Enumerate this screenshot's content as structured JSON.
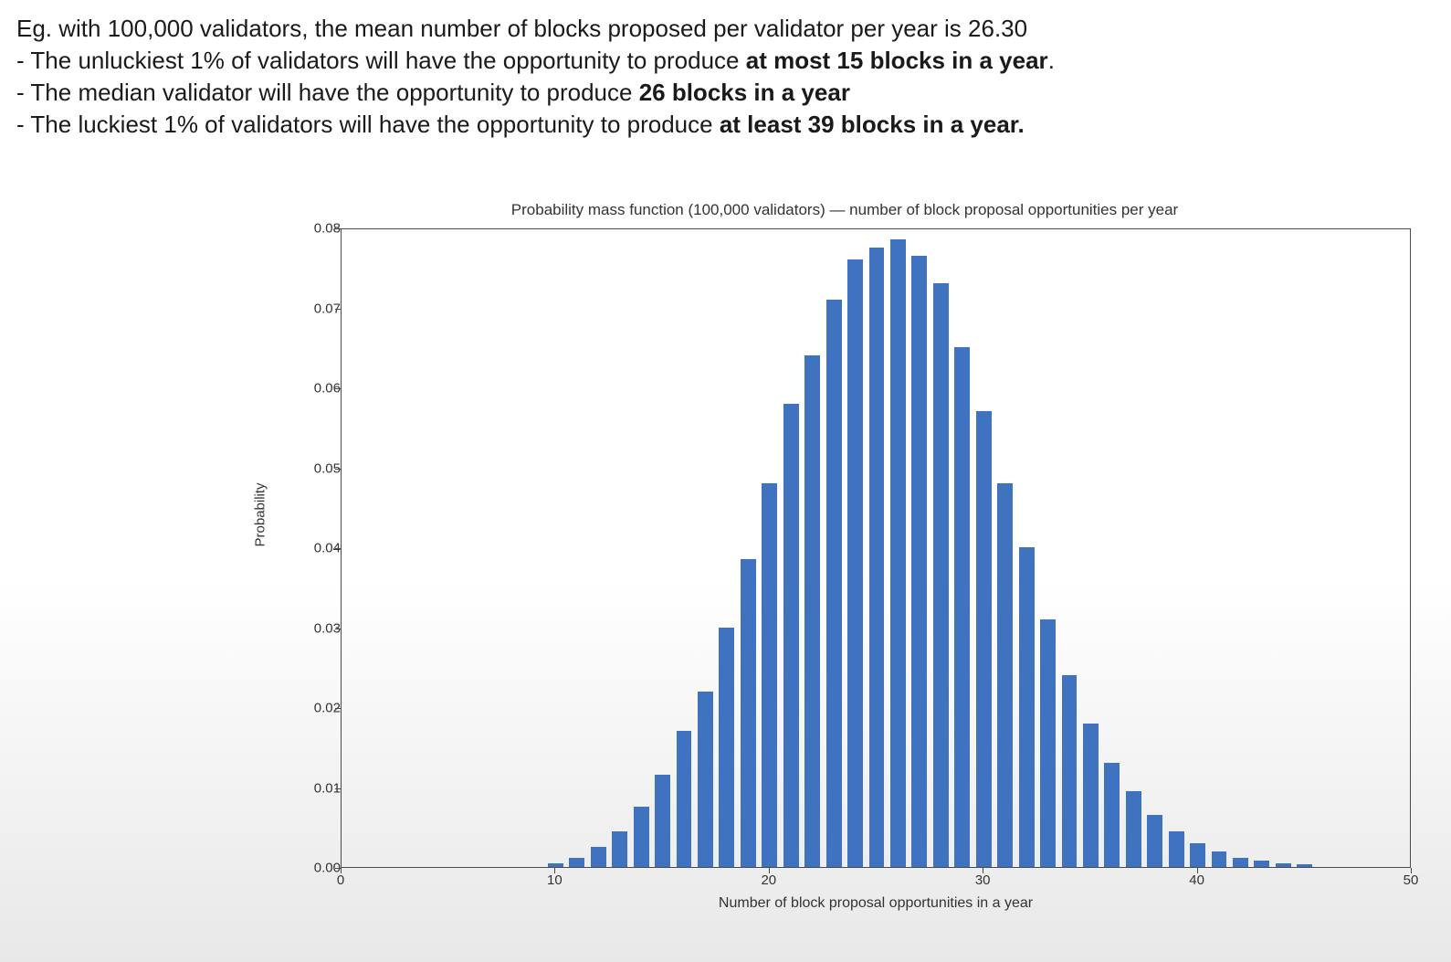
{
  "intro": {
    "line1_a": "Eg. with 100,000 validators, the mean number of blocks proposed per validator per year is 26.30",
    "line2_a": "- The unluckiest 1% of validators will have the opportunity to produce ",
    "line2_b": "at most 15 blocks in a year",
    "line2_c": ".",
    "line3_a": "- The median validator will have the opportunity to produce ",
    "line3_b": "26 blocks in a year",
    "line4_a": "- The luckiest 1% of validators will have the opportunity to produce ",
    "line4_b": "at least 39 blocks in a year."
  },
  "chart": {
    "type": "bar",
    "title": "Probability mass function (100,000 validators) — number of block proposal opportunities per year",
    "xlabel": "Number of block proposal opportunities in a year",
    "ylabel": "Probability",
    "xlim": [
      0,
      50
    ],
    "ylim": [
      0,
      0.08
    ],
    "xtick_step": 10,
    "xticks": [
      0,
      10,
      20,
      30,
      40,
      50
    ],
    "yticks": [
      0.0,
      0.01,
      0.02,
      0.03,
      0.04,
      0.05,
      0.06,
      0.07,
      0.08
    ],
    "ytick_labels": [
      "0.00",
      "0.01",
      "0.02",
      "0.03",
      "0.04",
      "0.05",
      "0.06",
      "0.07",
      "0.08"
    ],
    "bar_color": "#3f72bf",
    "bar_edge_color": "#3f72bf",
    "bar_width": 0.72,
    "frame_color": "#4a4a4a",
    "text_color": "#333333",
    "title_fontsize": 17,
    "label_fontsize": 15,
    "tick_fontsize": 15,
    "background_color": "#ffffff",
    "x": [
      10,
      11,
      12,
      13,
      14,
      15,
      16,
      17,
      18,
      19,
      20,
      21,
      22,
      23,
      24,
      25,
      26,
      27,
      28,
      29,
      30,
      31,
      32,
      33,
      34,
      35,
      36,
      37,
      38,
      39,
      40,
      41,
      42,
      43,
      44,
      45
    ],
    "y": [
      0.0005,
      0.0012,
      0.0025,
      0.0045,
      0.0075,
      0.0115,
      0.017,
      0.022,
      0.03,
      0.0385,
      0.048,
      0.058,
      0.064,
      0.071,
      0.076,
      0.0775,
      0.0785,
      0.0765,
      0.073,
      0.065,
      0.057,
      0.048,
      0.04,
      0.031,
      0.024,
      0.018,
      0.013,
      0.0095,
      0.0065,
      0.0045,
      0.003,
      0.002,
      0.0012,
      0.0008,
      0.0005,
      0.0003
    ]
  }
}
